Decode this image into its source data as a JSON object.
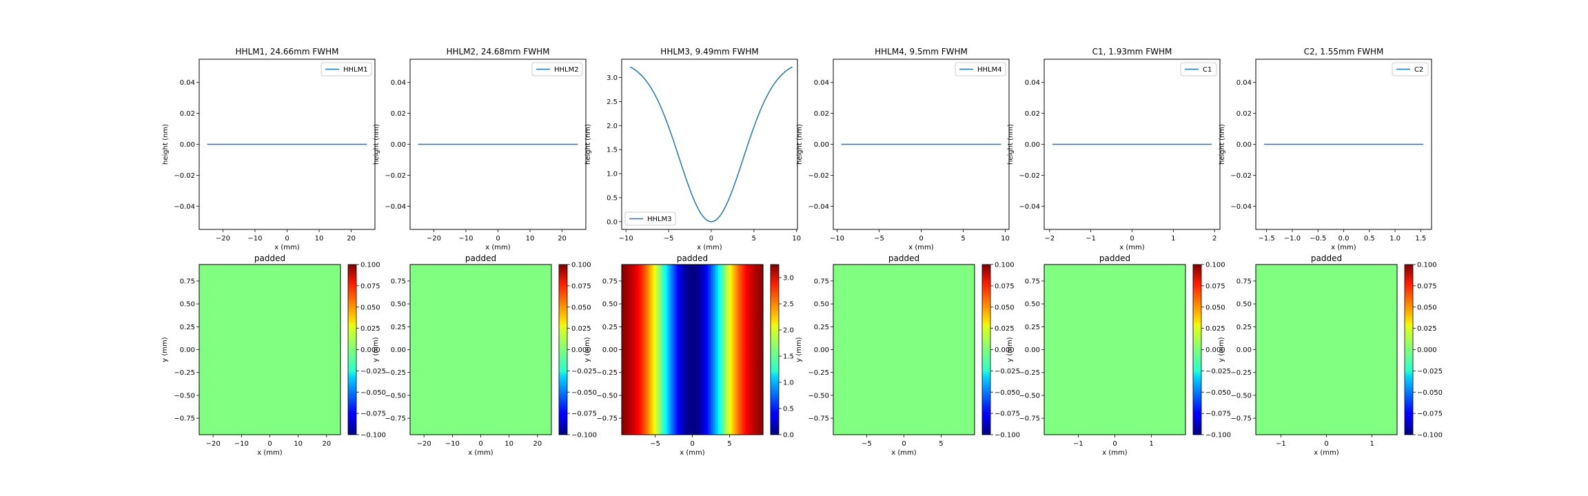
{
  "line_plots": [
    {
      "title": "HHLM1, 24.66mm FWHM",
      "legend": "HHLM1",
      "legend_loc": "upper right",
      "xlabel": "x (mm)",
      "ylabel": "height (nm)",
      "xlim": [
        -27.4,
        27.4
      ],
      "ylim": [
        -0.055,
        0.055
      ],
      "xticks": [
        -20,
        -10,
        0,
        10,
        20
      ],
      "xtick_labels": [
        "−20",
        "−10",
        "0",
        "10",
        "20"
      ],
      "yticks": [
        -0.04,
        -0.02,
        0,
        0.02,
        0.04
      ],
      "ytick_labels": [
        "−0.04",
        "−0.02",
        "0.00",
        "0.02",
        "0.04"
      ],
      "curve": "flat",
      "x_range": [
        -24.9,
        24.9
      ]
    },
    {
      "title": "HHLM2, 24.68mm FWHM",
      "legend": "HHLM2",
      "legend_loc": "upper right",
      "xlabel": "x (mm)",
      "ylabel": "height (nm)",
      "xlim": [
        -27.4,
        27.4
      ],
      "ylim": [
        -0.055,
        0.055
      ],
      "xticks": [
        -20,
        -10,
        0,
        10,
        20
      ],
      "xtick_labels": [
        "−20",
        "−10",
        "0",
        "10",
        "20"
      ],
      "yticks": [
        -0.04,
        -0.02,
        0,
        0.02,
        0.04
      ],
      "ytick_labels": [
        "−0.04",
        "−0.02",
        "0.00",
        "0.02",
        "0.04"
      ],
      "curve": "flat",
      "x_range": [
        -24.9,
        24.9
      ]
    },
    {
      "title": "HHLM3, 9.49mm FWHM",
      "legend": "HHLM3",
      "legend_loc": "lower left",
      "xlabel": "x (mm)",
      "ylabel": "height (nm)",
      "xlim": [
        -10.5,
        10.1
      ],
      "ylim": [
        -0.16,
        3.38
      ],
      "xticks": [
        -10,
        -5,
        0,
        5,
        10
      ],
      "xtick_labels": [
        "−10",
        "−5",
        "0",
        "5",
        "10"
      ],
      "yticks": [
        0,
        0.5,
        1,
        1.5,
        2,
        2.5,
        3
      ],
      "ytick_labels": [
        "0.0",
        "0.5",
        "1.0",
        "1.5",
        "2.0",
        "2.5",
        "3.0"
      ],
      "curve": "bowl",
      "x_range": [
        -9.5,
        9.5
      ],
      "y_max": 3.22
    },
    {
      "title": "HHLM4, 9.5mm FWHM",
      "legend": "HHLM4",
      "legend_loc": "upper right",
      "xlabel": "x (mm)",
      "ylabel": "height (nm)",
      "xlim": [
        -10.45,
        10.45
      ],
      "ylim": [
        -0.055,
        0.055
      ],
      "xticks": [
        -10,
        -5,
        0,
        5,
        10
      ],
      "xtick_labels": [
        "−10",
        "−5",
        "0",
        "5",
        "10"
      ],
      "yticks": [
        -0.04,
        -0.02,
        0,
        0.02,
        0.04
      ],
      "ytick_labels": [
        "−0.04",
        "−0.02",
        "0.00",
        "0.02",
        "0.04"
      ],
      "curve": "flat",
      "x_range": [
        -9.5,
        9.5
      ]
    },
    {
      "title": "C1, 1.93mm FWHM",
      "legend": "C1",
      "legend_loc": "upper right",
      "xlabel": "x (mm)",
      "ylabel": "height (nm)",
      "xlim": [
        -2.13,
        2.13
      ],
      "ylim": [
        -0.055,
        0.055
      ],
      "xticks": [
        -2,
        -1,
        0,
        1,
        2
      ],
      "xtick_labels": [
        "−2",
        "−1",
        "0",
        "1",
        "2"
      ],
      "yticks": [
        -0.04,
        -0.02,
        0,
        0.02,
        0.04
      ],
      "ytick_labels": [
        "−0.04",
        "−0.02",
        "0.00",
        "0.02",
        "0.04"
      ],
      "curve": "flat",
      "x_range": [
        -1.93,
        1.93
      ]
    },
    {
      "title": "C2, 1.55mm FWHM",
      "legend": "C2",
      "legend_loc": "upper right",
      "xlabel": "x (mm)",
      "ylabel": "height (nm)",
      "xlim": [
        -1.71,
        1.71
      ],
      "ylim": [
        -0.055,
        0.055
      ],
      "xticks": [
        -1.5,
        -1,
        -0.5,
        0,
        0.5,
        1,
        1.5
      ],
      "xtick_labels": [
        "−1.5",
        "−1.0",
        "−0.5",
        "0.0",
        "0.5",
        "1.0",
        "1.5"
      ],
      "yticks": [
        -0.04,
        -0.02,
        0,
        0.02,
        0.04
      ],
      "ytick_labels": [
        "−0.04",
        "−0.02",
        "0.00",
        "0.02",
        "0.04"
      ],
      "curve": "flat",
      "x_range": [
        -1.55,
        1.55
      ]
    }
  ],
  "heatmaps": [
    {
      "title": "padded",
      "xlabel": "x (mm)",
      "ylabel": "y (mm)",
      "colormap": "jet",
      "fill": "uniform",
      "xlim": [
        -24.9,
        24.9
      ],
      "ylim": [
        -0.93,
        0.93
      ],
      "xticks": [
        -20,
        -10,
        0,
        10,
        20
      ],
      "xtick_labels": [
        "−20",
        "−10",
        "0",
        "10",
        "20"
      ],
      "yticks": [
        -0.75,
        -0.5,
        -0.25,
        0,
        0.25,
        0.5,
        0.75
      ],
      "ytick_labels": [
        "−0.75",
        "−0.50",
        "−0.25",
        "0.00",
        "0.25",
        "0.50",
        "0.75"
      ],
      "cbar_range": [
        -0.1,
        0.1
      ],
      "cbar_ticks": [
        -0.1,
        -0.075,
        -0.05,
        -0.025,
        0,
        0.025,
        0.05,
        0.075,
        0.1
      ],
      "cbar_labels": [
        "−0.100",
        "−0.075",
        "−0.050",
        "−0.025",
        "0.000",
        "0.025",
        "0.050",
        "0.075",
        "0.100"
      ]
    },
    {
      "title": "padded",
      "xlabel": "x (mm)",
      "ylabel": "y (mm)",
      "colormap": "jet",
      "fill": "uniform",
      "xlim": [
        -24.9,
        24.9
      ],
      "ylim": [
        -0.93,
        0.93
      ],
      "xticks": [
        -20,
        -10,
        0,
        10,
        20
      ],
      "xtick_labels": [
        "−20",
        "−10",
        "0",
        "10",
        "20"
      ],
      "yticks": [
        -0.75,
        -0.5,
        -0.25,
        0,
        0.25,
        0.5,
        0.75
      ],
      "ytick_labels": [
        "−0.75",
        "−0.50",
        "−0.25",
        "0.00",
        "0.25",
        "0.50",
        "0.75"
      ],
      "cbar_range": [
        -0.1,
        0.1
      ],
      "cbar_ticks": [
        -0.1,
        -0.075,
        -0.05,
        -0.025,
        0,
        0.025,
        0.05,
        0.075,
        0.1
      ],
      "cbar_labels": [
        "−0.100",
        "−0.075",
        "−0.050",
        "−0.025",
        "0.000",
        "0.025",
        "0.050",
        "0.075",
        "0.100"
      ]
    },
    {
      "title": "padded",
      "xlabel": "x (mm)",
      "ylabel": "y (mm)",
      "colormap": "jet",
      "fill": "bowl_x",
      "xlim": [
        -9.5,
        9.5
      ],
      "ylim": [
        -0.93,
        0.93
      ],
      "xticks": [
        -5,
        0,
        5
      ],
      "xtick_labels": [
        "−5",
        "0",
        "5"
      ],
      "yticks": [
        -0.75,
        -0.5,
        -0.25,
        0,
        0.25,
        0.5,
        0.75
      ],
      "ytick_labels": [
        "−0.75",
        "−0.50",
        "−0.25",
        "0.00",
        "0.25",
        "0.50",
        "0.75"
      ],
      "cbar_range": [
        0,
        3.25
      ],
      "cbar_ticks": [
        0,
        0.5,
        1,
        1.5,
        2,
        2.5,
        3
      ],
      "cbar_labels": [
        "0.0",
        "0.5",
        "1.0",
        "1.5",
        "2.0",
        "2.5",
        "3.0"
      ]
    },
    {
      "title": "padded",
      "xlabel": "x (mm)",
      "ylabel": "y (mm)",
      "colormap": "jet",
      "fill": "uniform",
      "xlim": [
        -9.5,
        9.5
      ],
      "ylim": [
        -0.93,
        0.93
      ],
      "xticks": [
        -5,
        0,
        5
      ],
      "xtick_labels": [
        "−5",
        "0",
        "5"
      ],
      "yticks": [
        -0.75,
        -0.5,
        -0.25,
        0,
        0.25,
        0.5,
        0.75
      ],
      "ytick_labels": [
        "−0.75",
        "−0.50",
        "−0.25",
        "0.00",
        "0.25",
        "0.50",
        "0.75"
      ],
      "cbar_range": [
        -0.1,
        0.1
      ],
      "cbar_ticks": [
        -0.1,
        -0.075,
        -0.05,
        -0.025,
        0,
        0.025,
        0.05,
        0.075,
        0.1
      ],
      "cbar_labels": [
        "−0.100",
        "−0.075",
        "−0.050",
        "−0.025",
        "0.000",
        "0.025",
        "0.050",
        "0.075",
        "0.100"
      ]
    },
    {
      "title": "padded",
      "xlabel": "x (mm)",
      "ylabel": "y (mm)",
      "colormap": "jet",
      "fill": "uniform",
      "xlim": [
        -1.93,
        1.93
      ],
      "ylim": [
        -0.93,
        0.93
      ],
      "xticks": [
        -1,
        0,
        1
      ],
      "xtick_labels": [
        "−1",
        "0",
        "1"
      ],
      "yticks": [
        -0.75,
        -0.5,
        -0.25,
        0,
        0.25,
        0.5,
        0.75
      ],
      "ytick_labels": [
        "−0.75",
        "−0.50",
        "−0.25",
        "0.00",
        "0.25",
        "0.50",
        "0.75"
      ],
      "cbar_range": [
        -0.1,
        0.1
      ],
      "cbar_ticks": [
        -0.1,
        -0.075,
        -0.05,
        -0.025,
        0,
        0.025,
        0.05,
        0.075,
        0.1
      ],
      "cbar_labels": [
        "−0.100",
        "−0.075",
        "−0.050",
        "−0.025",
        "0.000",
        "0.025",
        "0.050",
        "0.075",
        "0.100"
      ]
    },
    {
      "title": "padded",
      "xlabel": "x (mm)",
      "ylabel": "y (mm)",
      "colormap": "jet",
      "fill": "uniform",
      "xlim": [
        -1.55,
        1.55
      ],
      "ylim": [
        -0.93,
        0.93
      ],
      "xticks": [
        -1,
        0,
        1
      ],
      "xtick_labels": [
        "−1",
        "0",
        "1"
      ],
      "yticks": [
        -0.75,
        -0.5,
        -0.25,
        0,
        0.25,
        0.5,
        0.75
      ],
      "ytick_labels": [
        "−0.75",
        "−0.50",
        "−0.25",
        "0.00",
        "0.25",
        "0.50",
        "0.75"
      ],
      "cbar_range": [
        -0.1,
        0.1
      ],
      "cbar_ticks": [
        -0.1,
        -0.075,
        -0.05,
        -0.025,
        0,
        0.025,
        0.05,
        0.075,
        0.1
      ],
      "cbar_labels": [
        "−0.100",
        "−0.075",
        "−0.050",
        "−0.025",
        "0.000",
        "0.025",
        "0.050",
        "0.075",
        "0.100"
      ]
    }
  ],
  "colors": {
    "line": "#1f77b4",
    "axes": "#000000"
  },
  "chart_data": [
    {
      "type": "line",
      "title": "HHLM1, 24.66mm FWHM",
      "xlabel": "x (mm)",
      "ylabel": "height (nm)",
      "x": [
        -24.9,
        0,
        24.9
      ],
      "series": [
        {
          "name": "HHLM1",
          "values": [
            0,
            0,
            0
          ]
        }
      ]
    },
    {
      "type": "line",
      "title": "HHLM2, 24.68mm FWHM",
      "xlabel": "x (mm)",
      "ylabel": "height (nm)",
      "x": [
        -24.9,
        0,
        24.9
      ],
      "series": [
        {
          "name": "HHLM2",
          "values": [
            0,
            0,
            0
          ]
        }
      ]
    },
    {
      "type": "line",
      "title": "HHLM3, 9.49mm FWHM",
      "xlabel": "x (mm)",
      "ylabel": "height (nm)",
      "x": [
        -9.5,
        -7.5,
        -5,
        -2.5,
        0,
        2.5,
        5,
        7.5,
        9.5
      ],
      "series": [
        {
          "name": "HHLM3",
          "values": [
            3.22,
            2.3,
            1.2,
            0.35,
            0,
            0.35,
            1.2,
            2.3,
            3.22
          ]
        }
      ]
    },
    {
      "type": "line",
      "title": "HHLM4, 9.5mm FWHM",
      "xlabel": "x (mm)",
      "ylabel": "height (nm)",
      "x": [
        -9.5,
        0,
        9.5
      ],
      "series": [
        {
          "name": "HHLM4",
          "values": [
            0,
            0,
            0
          ]
        }
      ]
    },
    {
      "type": "line",
      "title": "C1, 1.93mm FWHM",
      "xlabel": "x (mm)",
      "ylabel": "height (nm)",
      "x": [
        -1.93,
        0,
        1.93
      ],
      "series": [
        {
          "name": "C1",
          "values": [
            0,
            0,
            0
          ]
        }
      ]
    },
    {
      "type": "line",
      "title": "C2, 1.55mm FWHM",
      "xlabel": "x (mm)",
      "ylabel": "height (nm)",
      "x": [
        -1.55,
        0,
        1.55
      ],
      "series": [
        {
          "name": "C2",
          "values": [
            0,
            0,
            0
          ]
        }
      ]
    },
    {
      "type": "heatmap",
      "title": "padded",
      "xlabel": "x (mm)",
      "ylabel": "y (mm)",
      "value": 0,
      "colorbar_range": [
        -0.1,
        0.1
      ]
    },
    {
      "type": "heatmap",
      "title": "padded",
      "xlabel": "x (mm)",
      "ylabel": "y (mm)",
      "value": 0,
      "colorbar_range": [
        -0.1,
        0.1
      ]
    },
    {
      "type": "heatmap",
      "title": "padded",
      "xlabel": "x (mm)",
      "ylabel": "y (mm)",
      "profile": "height varies with x, min 0 at x=0, max ≈3.2 at edges",
      "colorbar_range": [
        0,
        3.25
      ]
    },
    {
      "type": "heatmap",
      "title": "padded",
      "xlabel": "x (mm)",
      "ylabel": "y (mm)",
      "value": 0,
      "colorbar_range": [
        -0.1,
        0.1
      ]
    },
    {
      "type": "heatmap",
      "title": "padded",
      "xlabel": "x (mm)",
      "ylabel": "y (mm)",
      "value": 0,
      "colorbar_range": [
        -0.1,
        0.1
      ]
    },
    {
      "type": "heatmap",
      "title": "padded",
      "xlabel": "x (mm)",
      "ylabel": "y (mm)",
      "value": 0,
      "colorbar_range": [
        -0.1,
        0.1
      ]
    }
  ]
}
